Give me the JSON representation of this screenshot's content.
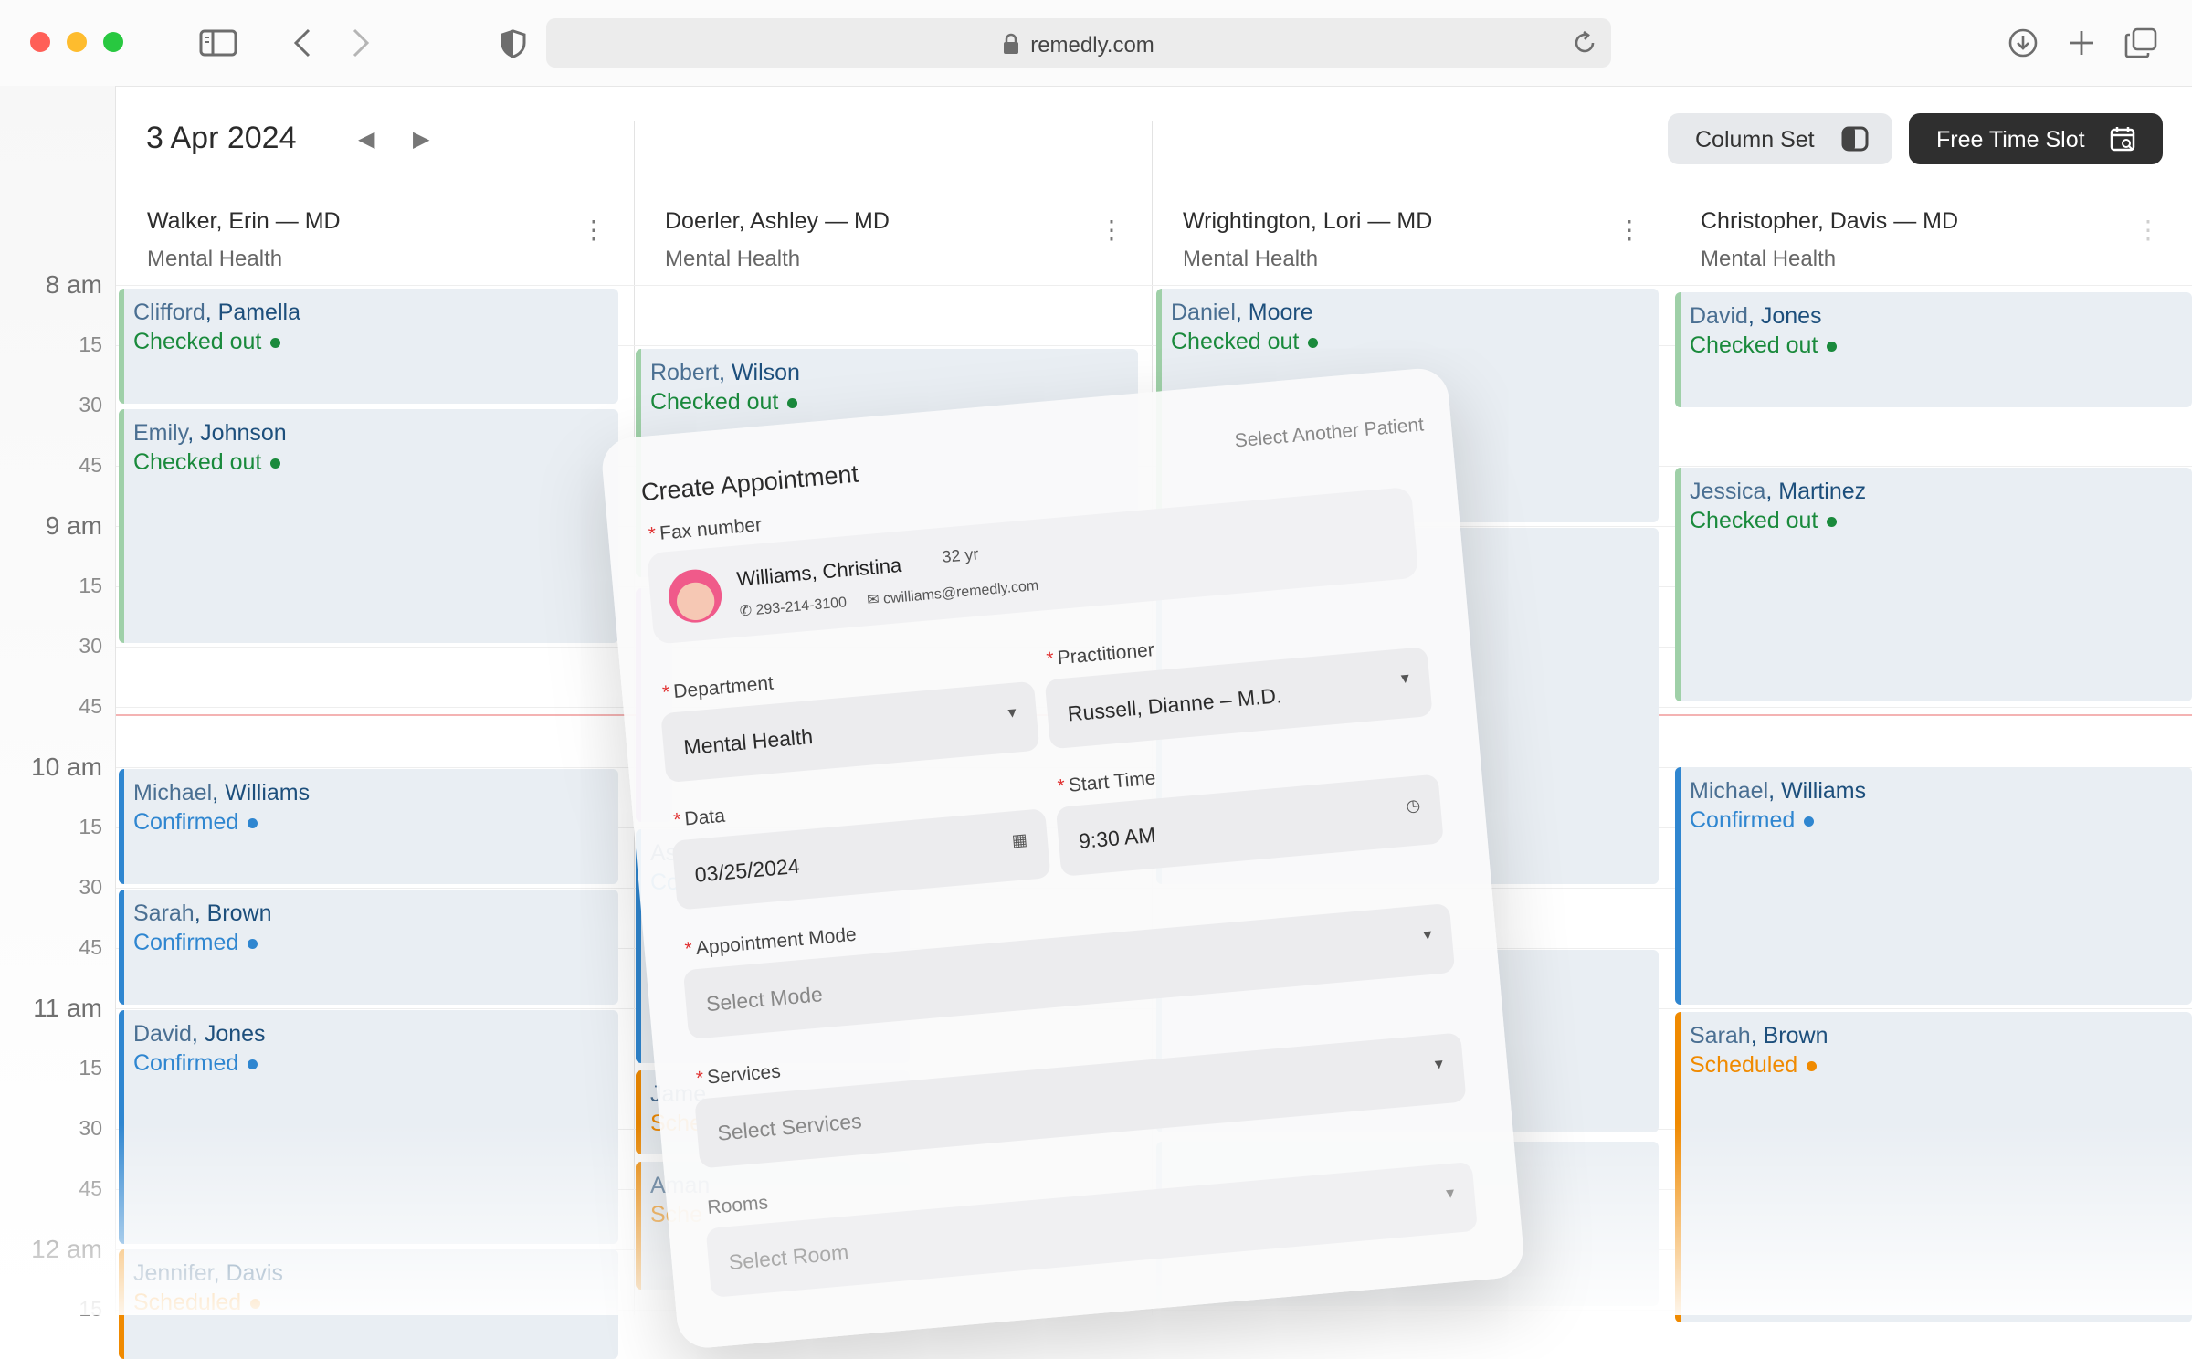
{
  "browser": {
    "url": "remedly.com",
    "traffic_light_colors": [
      "#ff5f57",
      "#febc2e",
      "#28c840"
    ]
  },
  "calendar": {
    "date": "3 Apr 2024",
    "column_set_label": "Column Set",
    "free_slot_label": "Free Time Slot",
    "times": [
      {
        "label": "8 am",
        "hour": true
      },
      {
        "label": "15",
        "hour": false
      },
      {
        "label": "30",
        "hour": false
      },
      {
        "label": "45",
        "hour": false
      },
      {
        "label": "9 am",
        "hour": true
      },
      {
        "label": "15",
        "hour": false
      },
      {
        "label": "30",
        "hour": false
      },
      {
        "label": "45",
        "hour": false
      },
      {
        "label": "10 am",
        "hour": true
      },
      {
        "label": "15",
        "hour": false
      },
      {
        "label": "30",
        "hour": false
      },
      {
        "label": "45",
        "hour": false
      },
      {
        "label": "11 am",
        "hour": true
      },
      {
        "label": "15",
        "hour": false
      },
      {
        "label": "30",
        "hour": false
      },
      {
        "label": "45",
        "hour": false
      },
      {
        "label": "12 am",
        "hour": true
      },
      {
        "label": "15",
        "hour": false
      }
    ],
    "columns": [
      {
        "doctor": "Walker, Erin — MD",
        "department": "Mental Health",
        "appointments": [
          {
            "first": "Clifford",
            "last": "Pamella",
            "status": "Checked out"
          },
          {
            "first": "Emily",
            "last": "Johnson",
            "status": "Checked out"
          },
          {
            "first": "Michael",
            "last": "Williams",
            "status": "Confirmed"
          },
          {
            "first": "Sarah",
            "last": "Brown",
            "status": "Confirmed"
          },
          {
            "first": "David",
            "last": "Jones",
            "status": "Confirmed"
          },
          {
            "first": "Jennifer",
            "last": "Davis",
            "status": "Scheduled"
          }
        ]
      },
      {
        "doctor": "Doerler, Ashley — MD",
        "department": "Mental Health",
        "appointments": [
          {
            "first": "Robert",
            "last": "Wilson",
            "status": "Checked out"
          },
          {
            "first": "As",
            "last": "",
            "status": "Co"
          },
          {
            "first": "Jame",
            "last": "",
            "status": "Sche"
          },
          {
            "first": "Aman",
            "last": "",
            "status": "Sche"
          }
        ]
      },
      {
        "doctor": "Wrightington, Lori — MD",
        "department": "Mental Health",
        "appointments": [
          {
            "first": "Daniel",
            "last": "Moore",
            "status": "Checked out"
          }
        ]
      },
      {
        "doctor": "Christopher, Davis —  MD",
        "department": "Mental Health",
        "appointments": [
          {
            "first": "David",
            "last": "Jones",
            "status": "Checked out"
          },
          {
            "first": "Jessica",
            "last": "Martinez",
            "status": "Checked out"
          },
          {
            "first": "Michael",
            "last": "Williams",
            "status": "Confirmed"
          },
          {
            "first": "Sarah",
            "last": "Brown",
            "status": "Scheduled"
          }
        ]
      }
    ],
    "status_colors": {
      "Checked out": "#1a8a3c",
      "Confirmed": "#2f86d0",
      "Scheduled": "#f08a00"
    }
  },
  "modal": {
    "title": "Create Appointment",
    "select_another": "Select Another Patient",
    "fax_label": "Fax number",
    "patient": {
      "name": "Williams, Christina",
      "age": "32 yr",
      "phone": "293-214-3100",
      "email": "cwilliams@remedly.com"
    },
    "department_label": "Department",
    "department_value": "Mental Health",
    "practitioner_label": "Practitioner",
    "practitioner_value": "Russell, Dianne – M.D.",
    "date_label": "Data",
    "date_value": "03/25/2024",
    "start_label": "Start Time",
    "start_value": "9:30 AM",
    "mode_label": "Appointment Mode",
    "mode_placeholder": "Select Mode",
    "services_label": "Services",
    "services_placeholder": "Select Services",
    "rooms_label": "Rooms",
    "rooms_placeholder": "Select Room"
  }
}
